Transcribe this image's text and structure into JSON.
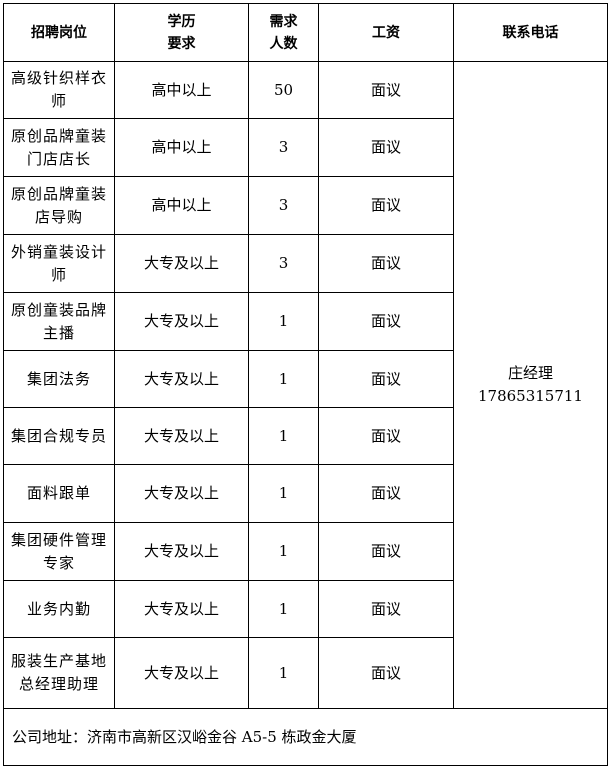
{
  "headers": {
    "position": "招聘岗位",
    "education": "学历\n要求",
    "count": "需求\n人数",
    "salary": "工资",
    "contact": "联系电话"
  },
  "rows": [
    {
      "position": "高级针织样衣师",
      "education": "高中以上",
      "count": "50",
      "salary": "面议"
    },
    {
      "position": "原创品牌童装门店店长",
      "education": "高中以上",
      "count": "3",
      "salary": "面议"
    },
    {
      "position": "原创品牌童装店导购",
      "education": "高中以上",
      "count": "3",
      "salary": "面议"
    },
    {
      "position": "外销童装设计师",
      "education": "大专及以上",
      "count": "3",
      "salary": "面议"
    },
    {
      "position": "原创童装品牌主播",
      "education": "大专及以上",
      "count": "1",
      "salary": "面议"
    },
    {
      "position": "集团法务",
      "education": "大专及以上",
      "count": "1",
      "salary": "面议"
    },
    {
      "position": "集团合规专员",
      "education": "大专及以上",
      "count": "1",
      "salary": "面议"
    },
    {
      "position": "面料跟单",
      "education": "大专及以上",
      "count": "1",
      "salary": "面议"
    },
    {
      "position": "集团硬件管理专家",
      "education": "大专及以上",
      "count": "1",
      "salary": "面议"
    },
    {
      "position": "业务内勤",
      "education": "大专及以上",
      "count": "1",
      "salary": "面议"
    },
    {
      "position": "服装生产基地总经理助理",
      "education": "大专及以上",
      "count": "1",
      "salary": "面议"
    }
  ],
  "contact": {
    "name": "庄经理",
    "phone": "17865315711"
  },
  "footer": {
    "address": "公司地址：济南市高新区汉峪金谷 A5-5 栋政金大厦"
  }
}
